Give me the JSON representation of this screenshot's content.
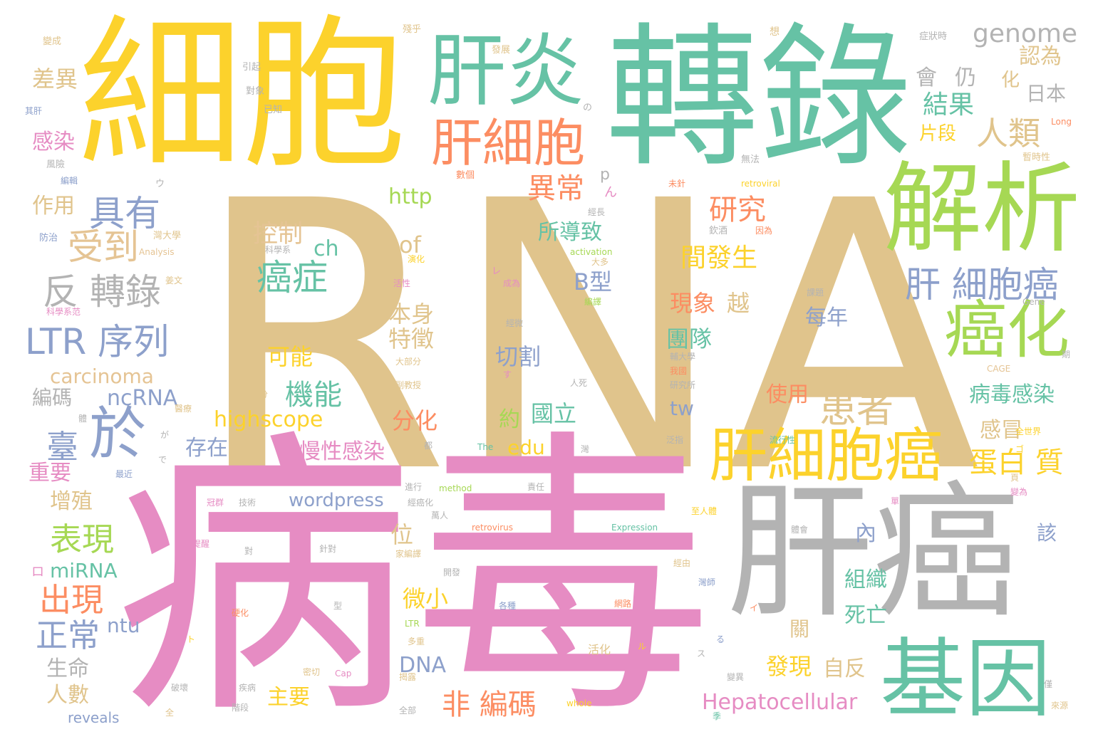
{
  "colors": {
    "tan": "#e0c48c",
    "teal": "#66c2a5",
    "yellow": "#fcd22c",
    "pink": "#e68cc3",
    "green": "#a6d854",
    "orange": "#fc8d62",
    "blue": "#8da0cb",
    "gray": "#b3b3b3",
    "beige": "#e5c494"
  },
  "words": {
    "w0": "RNA",
    "w1": "病毒",
    "w2": "轉錄",
    "w3": "細胞",
    "w4": "肝癌",
    "w5": "肝炎",
    "w6": "解析",
    "w7": "基因",
    "w8": "肝細胞癌",
    "w9": "肝細胞",
    "w10": "癌化",
    "w11": "於",
    "w12": "反 轉錄",
    "w13": "LTR 序列",
    "w14": "肝 細胞癌",
    "w15": "患者",
    "w16": "具有",
    "w17": "受到",
    "w18": "癌症",
    "w19": "人類",
    "w20": "研究",
    "w21": "genome",
    "w22": "出現",
    "w23": "正常",
    "w24": "表現",
    "w25": "臺",
    "w26": "機能",
    "w27": "非 編碼",
    "w28": "異常",
    "w29": "蛋白 質",
    "w30": "間發生",
    "w31": "結果",
    "w32": "控制",
    "w33": "所導致",
    "w34": "認為",
    "w35": "差異",
    "w36": "會",
    "w37": "仍",
    "w38": "化",
    "w39": "日本",
    "w40": "片段",
    "w41": "感染",
    "w42": "作用",
    "w43": "http",
    "w44": "of",
    "w45": "ch",
    "w46": "B型",
    "w47": "現象",
    "w48": "越",
    "w49": "每年",
    "w50": "團隊",
    "w51": "本身",
    "w52": "特徵",
    "w53": "切割",
    "w54": "可能",
    "w55": "carcinoma",
    "w56": "編碼",
    "w57": "ncRNA",
    "w58": "約",
    "w59": "國立",
    "w60": "使用",
    "w61": "tw",
    "w62": "病毒感染",
    "w63": "highscope",
    "w64": "分化",
    "w65": "存在",
    "w66": "edu",
    "w67": "慢性感染",
    "w68": "感冒",
    "w69": "重要",
    "w70": "增殖",
    "w71": "wordpress",
    "w72": "位",
    "w73": "內",
    "w74": "該",
    "w75": "miRNA",
    "w76": "微小",
    "w77": "組織",
    "w78": "死亡",
    "w79": "ntu",
    "w80": "關",
    "w81": "DNA",
    "w82": "發現",
    "w83": "自反",
    "w84": "生命",
    "w85": "人數",
    "w86": "主要",
    "w87": "Hepatocellular",
    "w88": "reveals",
    "w89": "p",
    "w90": "ん",
    "w91": "ロ",
    "w92": "想",
    "w93": "發展",
    "w94": "症狀時",
    "w95": "變成",
    "w96": "引起",
    "w97": "對象",
    "w98": "已知",
    "w99": "其肝",
    "w100": "の",
    "w101": "Long",
    "w102": "風險",
    "w103": "數個",
    "w104": "無法",
    "w105": "暫時性",
    "w106": "編輯",
    "w107": "ウ",
    "w108": "未針",
    "w109": "retroviral",
    "w110": "經長",
    "w111": "欽酒",
    "w112": "因為",
    "w113": "防治",
    "w114": "灣大學",
    "w115": "科學系",
    "w116": "Analysis",
    "w117": "activation",
    "w118": "大多",
    "w119": "演化",
    "w120": "レ",
    "w121": "成為",
    "w122": "活性",
    "w123": "姜文",
    "w124": "編譯",
    "w125": "課題",
    "w126": "Gene",
    "w127": "科學系范",
    "w128": "經微",
    "w129": "輔大學",
    "w130": "期",
    "w131": "大部分",
    "w132": "す",
    "w133": "我國",
    "w134": "研究所",
    "w135": "因子",
    "w136": "CAGE",
    "w137": "定量",
    "w138": "副教授",
    "w139": "人死",
    "w140": "部分",
    "w141": "體",
    "w142": "醫療",
    "w143": "が",
    "w144": "流行性",
    "w145": "全世界",
    "w146": "で",
    "w147": "泛指",
    "w148": "都",
    "w149": "The",
    "w150": "最近",
    "w151": "進行",
    "w152": "method",
    "w153": "責任",
    "w154": "冠群",
    "w155": "技術",
    "w156": "變為",
    "w157": "經癌化",
    "w158": "萬人",
    "w159": "至人體",
    "w160": "retrovirus",
    "w161": "Expression",
    "w162": "體會",
    "w163": "提醒",
    "w164": "對",
    "w165": "針對",
    "w166": "開發",
    "w167": "經由",
    "w168": "灣師",
    "w169": "各種",
    "w170": "網路",
    "w171": "硬化",
    "w172": "型",
    "w173": "イ",
    "w174": "LTR",
    "w175": "多重",
    "w176": "活化",
    "w177": "ル",
    "w178": "る",
    "w179": "ト",
    "w180": "ス",
    "w181": "密切",
    "w182": "Cap",
    "w183": "破壞",
    "w184": "疾病",
    "w185": "揭露",
    "w186": "變異",
    "w187": "全",
    "w188": "階段",
    "w189": "全部",
    "w190": "whole",
    "w191": "季",
    "w192": "來源",
    "w193": "僅",
    "w194": "家編譯",
    "w195": "頁",
    "w196": "單",
    "w197": "灣",
    "w198": "ゴ",
    "w199": "殘乎"
  }
}
